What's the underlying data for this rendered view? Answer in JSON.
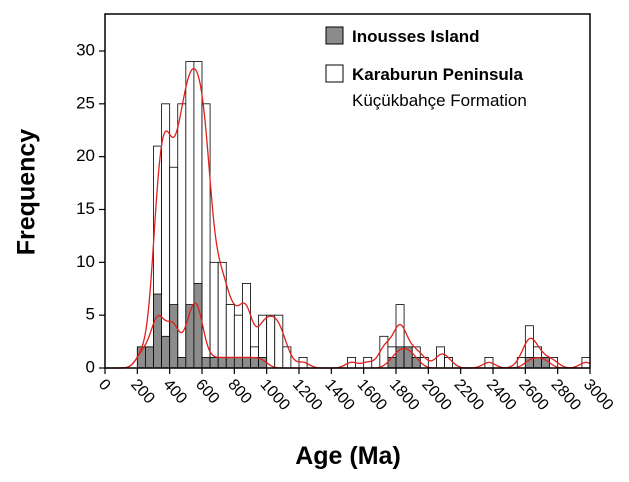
{
  "chart_data": {
    "type": "histogram",
    "x_label": "Age (Ma)",
    "y_label": "Frequency",
    "bins": [
      0,
      50,
      100,
      150,
      200,
      250,
      300,
      350,
      400,
      450,
      500,
      550,
      600,
      650,
      700,
      750,
      800,
      850,
      900,
      950,
      1000,
      1050,
      1100,
      1150,
      1200,
      1250,
      1300,
      1350,
      1400,
      1450,
      1500,
      1550,
      1600,
      1650,
      1700,
      1750,
      1800,
      1850,
      1900,
      1950,
      2000,
      2050,
      2100,
      2150,
      2200,
      2250,
      2300,
      2350,
      2400,
      2450,
      2500,
      2550,
      2600,
      2650,
      2700,
      2750,
      2800,
      2850,
      2900,
      2950,
      3000
    ],
    "series": [
      {
        "name": "Karaburun Peninsula",
        "color": "#ffffff",
        "values": [
          0,
          0,
          0,
          0,
          2,
          2,
          21,
          25,
          19,
          25,
          29,
          29,
          25,
          10,
          10,
          6,
          5,
          8,
          2,
          5,
          5,
          5,
          2,
          0,
          1,
          0,
          0,
          0,
          0,
          0,
          1,
          0,
          1,
          0,
          3,
          2,
          6,
          2,
          2,
          1,
          0,
          2,
          1,
          0,
          0,
          0,
          0,
          1,
          0,
          0,
          0,
          1,
          4,
          2,
          1,
          1,
          0,
          0,
          0,
          1
        ]
      },
      {
        "name": "Inousses Island",
        "color": "#8c8c8c",
        "values": [
          0,
          0,
          0,
          0,
          2,
          2,
          7,
          3,
          6,
          1,
          6,
          8,
          1,
          1,
          1,
          1,
          1,
          1,
          1,
          1,
          0,
          0,
          0,
          0,
          0,
          0,
          0,
          0,
          0,
          0,
          0,
          0,
          0,
          0,
          0,
          1,
          2,
          2,
          1,
          0,
          0,
          0,
          0,
          0,
          0,
          0,
          0,
          0,
          0,
          0,
          0,
          0,
          1,
          1,
          1,
          0,
          0,
          0,
          0,
          0
        ]
      }
    ],
    "legend_note": "Küçükbahçe Formation",
    "curve_color": "#e0201b",
    "xlim": [
      0,
      3000
    ],
    "xticks": [
      0,
      200,
      400,
      600,
      800,
      1000,
      1200,
      1400,
      1600,
      1800,
      2000,
      2200,
      2400,
      2600,
      2800,
      3000
    ],
    "ylim": [
      0,
      33.5
    ],
    "yticks": [
      0,
      5,
      10,
      15,
      20,
      25,
      30
    ]
  }
}
